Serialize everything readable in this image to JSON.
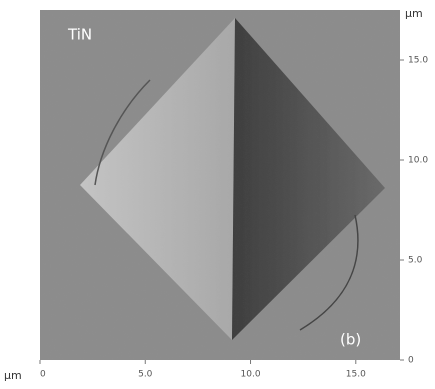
{
  "chart_data": {
    "type": "image",
    "title": "TiN",
    "annotation": "(b)",
    "x_label": "μm",
    "y_label": "μm",
    "xlim": [
      0,
      17.1
    ],
    "ylim": [
      0,
      17.5
    ],
    "xticks": [
      0,
      {
        "value": 5,
        "label": "5.0"
      },
      {
        "value": 10,
        "label": "10.0"
      },
      {
        "value": 15,
        "label": "15.0"
      }
    ],
    "yticks": [
      0,
      {
        "value": 5,
        "label": "5.0"
      },
      {
        "value": 10,
        "label": "10.0"
      },
      {
        "value": 15,
        "label": "15.0"
      }
    ]
  }
}
